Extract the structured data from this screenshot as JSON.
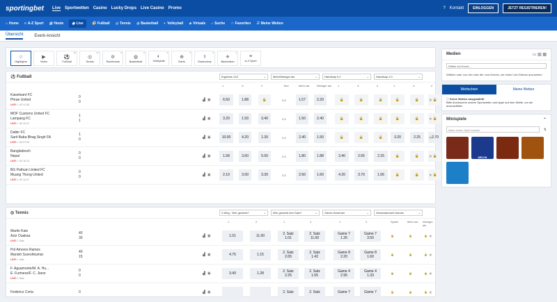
{
  "brand": "sportingbet",
  "topnav": [
    "Live",
    "Sportwetten",
    "Casino",
    "Lucky Drops",
    "Live Casino",
    "Promo"
  ],
  "topright": {
    "kontakt": "Kontakt",
    "login": "EINLOGGEN",
    "register": "JETZT REGISTRIEREN!"
  },
  "subnav": [
    "Home",
    "A-Z Sport",
    "Heute",
    "Live",
    "Fußball",
    "Tennis",
    "Basketball",
    "Volleyball",
    "Virtuals",
    "Suche",
    "Favoriten",
    "Meine Wetten"
  ],
  "tabs": [
    "Übersicht",
    "Event-Ansicht"
  ],
  "categories": [
    {
      "label": "Highlights",
      "n": "",
      "icon": "☆"
    },
    {
      "label": "Video",
      "n": "",
      "icon": "▶"
    },
    {
      "label": "Fußball",
      "n": "10",
      "icon": "⚽"
    },
    {
      "label": "Tennis",
      "n": "27",
      "icon": "◎"
    },
    {
      "label": "Tischtennis",
      "n": "9",
      "icon": "⊘"
    },
    {
      "label": "Basketball",
      "n": "6",
      "icon": "◍"
    },
    {
      "label": "Volleyball",
      "n": "3",
      "icon": "◐"
    },
    {
      "label": "Darts",
      "n": "2",
      "icon": "⊕"
    },
    {
      "label": "Esshockey",
      "n": "2",
      "icon": "⚕"
    },
    {
      "label": "Badminton",
      "n": "1",
      "icon": "✈"
    },
    {
      "label": "A-Z Sport",
      "n": "",
      "icon": "≡"
    }
  ],
  "football": {
    "title": "Fußball",
    "selects": [
      "Ergebnis 1X2",
      "Mehr/Weniger als",
      "Handicap 0:1",
      "Handicap 1:0"
    ],
    "cols": [
      "1",
      "X",
      "2",
      "Tore",
      "Mehr als",
      "Weniger als",
      "1",
      "X",
      "2",
      "1",
      "X",
      "2"
    ],
    "rows": [
      {
        "t1": "Kawetsant FC",
        "t2": "Phrae United",
        "s1": "0",
        "s2": "0",
        "meta": "1. HZ 41:38",
        "odds": [
          "6.50",
          "1.88",
          "",
          "0,5",
          "1.57",
          "2.20",
          "",
          "",
          "",
          "",
          "",
          ""
        ]
      },
      {
        "t1": "MOF Customs United FC",
        "t2": "Lampang FC",
        "s1": "1",
        "s2": "1",
        "meta": "1. HZ 42:47",
        "odds": [
          "3.20",
          "1.93",
          "3.40",
          "2,5",
          "1.50",
          "2.40",
          "",
          "",
          "",
          "",
          "",
          ""
        ]
      },
      {
        "t1": "Dalbir FC",
        "t2": "Sarit Baba Bhag Singh FA",
        "s1": "1",
        "s2": "0",
        "meta": "1. HZ 57:26",
        "odds": [
          "10.00",
          "4.20",
          "1.30",
          "2,5",
          "2.40",
          "1.50",
          "",
          "",
          "",
          "3.20",
          "2.25",
          "2.70"
        ]
      },
      {
        "t1": "Bangladesch",
        "t2": "Nepal",
        "s1": "0",
        "s2": "0",
        "meta": "1. HZ 16:13",
        "odds": [
          "1.58",
          "3.60",
          "5.00",
          "2,5",
          "1.80",
          "1.88",
          "3.40",
          "2.65",
          "2.25",
          "",
          "",
          ""
        ]
      },
      {
        "t1": "BG Pathum United FC",
        "t2": "Muang Thong United",
        "s1": "0",
        "s2": "0",
        "meta": "1. HZ 14:27",
        "odds": [
          "2.10",
          "3.00",
          "3.30",
          "2,5",
          "2.50",
          "1.60",
          "4.20",
          "3.70",
          "1.66",
          "",
          "",
          ""
        ]
      }
    ]
  },
  "tennis": {
    "title": "Tennis",
    "selects": [
      "2-Weg - Wer gewinnt?",
      "Wer gewinnt den Satz?",
      "Game-Gewinner",
      "Gesamtanzahl Games"
    ],
    "cols": [
      "1",
      "2",
      "1",
      "2",
      "1",
      "2",
      "Spiele",
      "Mehr als",
      "Weniger als"
    ],
    "rows": [
      {
        "t1": "Martin Katz",
        "t2": "Aziz Ouakaa",
        "g1": "40",
        "g2": "30",
        "set": "2. Satz",
        "odds": [
          [
            "1.01",
            ""
          ],
          [
            "11.00",
            ""
          ],
          [
            "2. Satz",
            "1.01"
          ],
          [
            "2. Satz",
            "11.00"
          ],
          [
            "Game 7",
            "1.26"
          ],
          [
            "Game 7",
            "3.50"
          ]
        ]
      },
      {
        "t1": "Pol Amoros Ramos",
        "t2": "Manish Sureshkumar",
        "g1": "40",
        "g2": "15",
        "set": "1. Satz",
        "odds": [
          [
            "4.75",
            ""
          ],
          [
            "1.15",
            ""
          ],
          [
            "2. Satz",
            "2.65"
          ],
          [
            "2. Satz",
            "1.42"
          ],
          [
            "Game 8",
            "2.20"
          ],
          [
            "Game 8",
            "1.60"
          ]
        ]
      },
      {
        "t1": "F. Aguamonte/M. A. Hu...",
        "t2": "E. Furtness/F. C. Jiano",
        "g1": "0",
        "g2": "0",
        "set": "2. Satz",
        "odds": [
          [
            "3.40",
            ""
          ],
          [
            "1.28",
            ""
          ],
          [
            "2. Satz",
            "2.25"
          ],
          [
            "2. Satz",
            "1.55"
          ],
          [
            "Game 4",
            "2.95"
          ],
          [
            "Game 4",
            "1.33"
          ]
        ]
      },
      {
        "t1": "Federico Coria",
        "t2": "",
        "g1": "0",
        "g2": "",
        "set": "",
        "odds": [
          [
            "",
            ""
          ],
          [
            "",
            ""
          ],
          [
            "2. Satz",
            ""
          ],
          [
            "2. Satz",
            ""
          ],
          [
            "Game 7",
            ""
          ],
          [
            "Game 7",
            ""
          ]
        ]
      }
    ]
  },
  "media": {
    "title": "Medien",
    "select": "Wähle ein Event ...",
    "text": "Wählen  oder  von der Liste der Live-Events, um einen Live-Stream anzusehen."
  },
  "betslip": {
    "tab1": "Wettschein",
    "tab2": "Meine Wetten",
    "head": "Keine Wetten ausgewählt!",
    "text": "Bitte durchsuche unsere Sportwetten und tippe auf eine Wette, um sie auszuwählen"
  },
  "mini": {
    "title": "Minispiele",
    "search": "Nach einem Spiel suchen",
    "games": [
      {
        "label": "",
        "color": "#7a2a18"
      },
      {
        "label": "MELON",
        "color": "#1c3a8c"
      },
      {
        "label": "",
        "color": "#7b2a10"
      },
      {
        "label": "",
        "color": "#a0520f"
      },
      {
        "label": "",
        "color": "#1d7fc7"
      }
    ]
  }
}
